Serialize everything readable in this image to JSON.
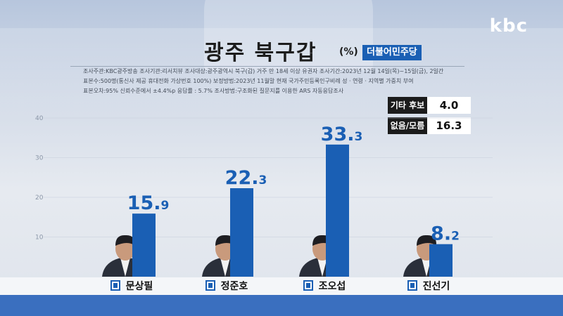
{
  "broadcaster_logo": "kbc",
  "title": "광주 북구갑",
  "title_unit": "(%)",
  "party_badge": "더불어민주당",
  "survey_info": {
    "line1": "조사주관:KBC광주방송    조사기관:리서치뷰    조사대상:광주광역시 북구(갑) 거주 만 18세 이상 유권자    조사기간:2023년 12월 14일(목)~15일(금), 2일간",
    "line2": "표본수:500명(통신사 제공 휴대전화 가상번호 100%)    보정방법:2023년 11월말 현재 국가주민등록인구비례 성 · 연령 · 지역별 가중치 부여",
    "line3": "표본오차:95% 신뢰수준에서 ±4.4%p    응답률 : 5.7%    조사방법:구조화된 질문지를 이용한 ARS 자동응답조사"
  },
  "other_results": [
    {
      "label": "기타 후보",
      "value": "4.0"
    },
    {
      "label": "없음/모름",
      "value": "16.3"
    }
  ],
  "colors": {
    "bar": "#1a5fb4",
    "bar_top": "#2d77cf",
    "badge": "#1a5fb4",
    "bottom_band": "#3a6fbf"
  },
  "chart_data": {
    "type": "bar",
    "title": "광주 북구갑",
    "unit": "(%)",
    "categories": [
      "문상필",
      "정준호",
      "조오섭",
      "진선기"
    ],
    "values": [
      15.9,
      22.3,
      33.3,
      8.2
    ],
    "ylim": [
      0,
      40
    ],
    "yticks": [
      10,
      20,
      30,
      40
    ],
    "grid": false
  }
}
